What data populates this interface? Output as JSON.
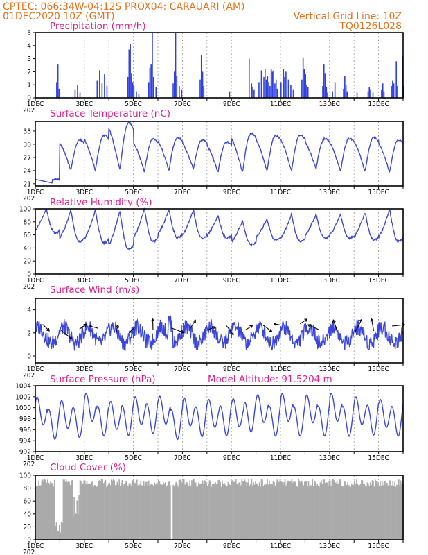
{
  "header": {
    "left1": "CPTEC:   066:34W-04:12S   PROX04: CARAUARI (AM)",
    "left2": "01DEC2020 10Z (GMT)",
    "right1": "Vertical Grid Line: 10Z",
    "right2": "TQ0126L028"
  },
  "x_labels": [
    "1DEC",
    "3DEC",
    "5DEC",
    "7DEC",
    "9DEC",
    "11DEC",
    "13DEC",
    "15DEC"
  ],
  "year_fragment": "202",
  "chart_data": [
    {
      "type": "bar",
      "title": "Precipitation (mm/h)",
      "ylim": [
        0,
        5
      ],
      "yticks": [
        0,
        1,
        2,
        3,
        4,
        5
      ],
      "x_range_days": [
        1.0,
        16.0
      ],
      "events": [
        {
          "x": 1.85,
          "y": 1.2
        },
        {
          "x": 1.9,
          "y": 2.6
        },
        {
          "x": 1.95,
          "y": 0.7
        },
        {
          "x": 2.6,
          "y": 0.6
        },
        {
          "x": 2.7,
          "y": 1.0
        },
        {
          "x": 2.8,
          "y": 0.4
        },
        {
          "x": 3.5,
          "y": 1.3
        },
        {
          "x": 3.6,
          "y": 2.1
        },
        {
          "x": 3.7,
          "y": 1.1
        },
        {
          "x": 3.8,
          "y": 1.8
        },
        {
          "x": 3.9,
          "y": 0.9
        },
        {
          "x": 4.75,
          "y": 1.6
        },
        {
          "x": 4.8,
          "y": 3.7
        },
        {
          "x": 4.85,
          "y": 4.1
        },
        {
          "x": 4.9,
          "y": 1.9
        },
        {
          "x": 4.95,
          "y": 1.2
        },
        {
          "x": 5.0,
          "y": 0.9
        },
        {
          "x": 5.1,
          "y": 0.5
        },
        {
          "x": 5.2,
          "y": 0.3
        },
        {
          "x": 5.6,
          "y": 1.2
        },
        {
          "x": 5.65,
          "y": 2.3
        },
        {
          "x": 5.7,
          "y": 2.6
        },
        {
          "x": 5.75,
          "y": 5.0
        },
        {
          "x": 5.8,
          "y": 1.6
        },
        {
          "x": 5.9,
          "y": 0.8
        },
        {
          "x": 6.6,
          "y": 1.1
        },
        {
          "x": 6.65,
          "y": 2.0
        },
        {
          "x": 6.7,
          "y": 5.0
        },
        {
          "x": 6.75,
          "y": 1.7
        },
        {
          "x": 6.85,
          "y": 0.9
        },
        {
          "x": 6.95,
          "y": 0.6
        },
        {
          "x": 7.7,
          "y": 1.4
        },
        {
          "x": 7.75,
          "y": 3.3
        },
        {
          "x": 7.8,
          "y": 2.0
        },
        {
          "x": 7.85,
          "y": 0.9
        },
        {
          "x": 8.9,
          "y": 0.5
        },
        {
          "x": 9.7,
          "y": 3.0
        },
        {
          "x": 9.8,
          "y": 1.1
        },
        {
          "x": 9.85,
          "y": 0.8
        },
        {
          "x": 9.9,
          "y": 0.6
        },
        {
          "x": 10.1,
          "y": 1.2
        },
        {
          "x": 10.2,
          "y": 2.1
        },
        {
          "x": 10.3,
          "y": 1.6
        },
        {
          "x": 10.35,
          "y": 2.2
        },
        {
          "x": 10.4,
          "y": 1.4
        },
        {
          "x": 10.45,
          "y": 1.7
        },
        {
          "x": 10.5,
          "y": 1.2
        },
        {
          "x": 10.55,
          "y": 0.9
        },
        {
          "x": 10.6,
          "y": 2.2
        },
        {
          "x": 10.65,
          "y": 2.0
        },
        {
          "x": 10.7,
          "y": 2.1
        },
        {
          "x": 10.75,
          "y": 1.1
        },
        {
          "x": 10.8,
          "y": 1.4
        },
        {
          "x": 10.85,
          "y": 0.7
        },
        {
          "x": 11.0,
          "y": 1.2
        },
        {
          "x": 11.1,
          "y": 2.2
        },
        {
          "x": 11.15,
          "y": 1.6
        },
        {
          "x": 11.2,
          "y": 2.0
        },
        {
          "x": 11.3,
          "y": 1.4
        },
        {
          "x": 11.4,
          "y": 1.0
        },
        {
          "x": 11.5,
          "y": 0.6
        },
        {
          "x": 11.85,
          "y": 1.4
        },
        {
          "x": 11.9,
          "y": 3.1
        },
        {
          "x": 11.95,
          "y": 2.2
        },
        {
          "x": 12.0,
          "y": 1.8
        },
        {
          "x": 12.05,
          "y": 1.0
        },
        {
          "x": 12.1,
          "y": 0.8
        },
        {
          "x": 12.7,
          "y": 0.9
        },
        {
          "x": 12.75,
          "y": 2.6
        },
        {
          "x": 12.8,
          "y": 1.9
        },
        {
          "x": 12.85,
          "y": 0.8
        },
        {
          "x": 12.9,
          "y": 0.4
        },
        {
          "x": 13.1,
          "y": 0.5
        },
        {
          "x": 13.2,
          "y": 1.2
        },
        {
          "x": 13.55,
          "y": 0.7
        },
        {
          "x": 13.6,
          "y": 1.7
        },
        {
          "x": 13.65,
          "y": 1.0
        },
        {
          "x": 13.7,
          "y": 0.5
        },
        {
          "x": 14.1,
          "y": 0.4
        },
        {
          "x": 14.55,
          "y": 0.5
        },
        {
          "x": 14.6,
          "y": 0.8
        },
        {
          "x": 14.65,
          "y": 0.6
        },
        {
          "x": 14.75,
          "y": 0.4
        },
        {
          "x": 15.1,
          "y": 0.6
        },
        {
          "x": 15.15,
          "y": 1.1
        },
        {
          "x": 15.2,
          "y": 0.5
        },
        {
          "x": 15.5,
          "y": 0.9
        },
        {
          "x": 15.55,
          "y": 1.3
        },
        {
          "x": 15.6,
          "y": 1.1
        },
        {
          "x": 15.7,
          "y": 2.8
        },
        {
          "x": 15.75,
          "y": 0.9
        },
        {
          "x": 15.95,
          "y": 3.2
        },
        {
          "x": 16.0,
          "y": 0.9
        }
      ]
    },
    {
      "type": "line",
      "title": "Surface Temperature (nC)",
      "ylim": [
        20.5,
        35.2
      ],
      "yticks": [
        21,
        24,
        27,
        30,
        33
      ],
      "x_range_days": [
        1.0,
        16.0
      ],
      "baseline_min": [
        21.2,
        24.0,
        24.0,
        24.0,
        23.8,
        24.0,
        24.2,
        23.6,
        23.5,
        23.8,
        23.8,
        24.4,
        23.8,
        23.7,
        23.6,
        23.7
      ],
      "peak_max": [
        22.0,
        31.0,
        32.0,
        34.8,
        31.2,
        31.5,
        31.0,
        30.5,
        32.5,
        32.0,
        32.1,
        31.3,
        31.3,
        31.5,
        31.0,
        29.2
      ]
    },
    {
      "type": "line",
      "title": "Relative Humidity (%)",
      "ylim": [
        0,
        100
      ],
      "yticks": [
        0,
        20,
        40,
        60,
        80,
        100
      ],
      "x_range_days": [
        1.0,
        16.0
      ],
      "trough_min": [
        63,
        50,
        48,
        38,
        50,
        56,
        55,
        55,
        45,
        52,
        50,
        55,
        55,
        52,
        50,
        60
      ],
      "plateau_max": [
        100,
        98,
        98,
        97,
        100,
        99,
        98,
        90,
        82,
        85,
        92,
        92,
        92,
        95,
        100,
        95
      ]
    },
    {
      "type": "line",
      "title": "Surface Wind (m/s)",
      "ylim": [
        -0.6,
        5.0
      ],
      "yticks": [
        0,
        2,
        4
      ],
      "x_range_days": [
        1.0,
        16.0
      ],
      "arrows_shown": true
    },
    {
      "type": "line",
      "title": "Surface Pressure (hPa)",
      "annotation": "Model Altitude: 91.5204 m",
      "ylim": [
        992,
        1004
      ],
      "yticks": [
        992,
        994,
        996,
        998,
        1000,
        1002,
        1004
      ],
      "x_range_days": [
        1.0,
        16.0
      ]
    },
    {
      "type": "area",
      "title": "Cloud Cover (%)",
      "ylim": [
        0,
        100
      ],
      "yticks": [
        0,
        20,
        40,
        60,
        80,
        100
      ],
      "x_range_days": [
        1.0,
        16.0
      ]
    }
  ],
  "colors": {
    "header": "#e8711a",
    "panel_title": "#e0218a",
    "series": "#3a46dc",
    "bars": "#2f3fe0",
    "cloud": "#aaaaaa"
  }
}
